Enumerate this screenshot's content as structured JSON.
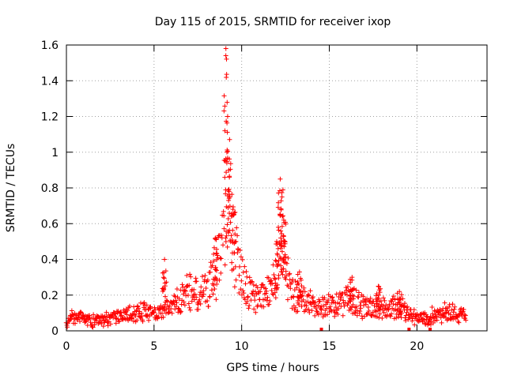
{
  "chart_data": {
    "type": "scatter",
    "title": "Day 115 of 2015, SRMTID for receiver ixop",
    "xlabel": "GPS time / hours",
    "ylabel": "SRMTID / TECUs",
    "xlim": [
      0,
      24
    ],
    "ylim": [
      0,
      1.6
    ],
    "grid": true,
    "marker": "+",
    "marker_color": "#ff0000",
    "x_ticks": [
      0,
      5,
      10,
      15,
      20
    ],
    "x_tick_labels": [
      "0",
      "5",
      "10",
      "15",
      "20"
    ],
    "y_ticks": [
      0,
      0.2,
      0.4,
      0.6,
      0.8,
      1.0,
      1.2,
      1.4,
      1.6
    ],
    "y_tick_labels": [
      "0",
      "0.2",
      "0.4",
      "0.6",
      "0.8",
      "1",
      "1.2",
      "1.4",
      "1.6"
    ],
    "series": [
      {
        "name": "SRMTID",
        "profile_note": "approximate envelope of the dense scatter (hour, typical value)",
        "x": [
          0.0,
          0.5,
          1.0,
          1.5,
          2.0,
          2.5,
          3.0,
          3.5,
          4.0,
          4.5,
          5.0,
          5.5,
          6.0,
          6.5,
          7.0,
          7.5,
          8.0,
          8.5,
          9.0,
          9.2,
          9.5,
          10.0,
          10.5,
          11.0,
          11.5,
          12.0,
          12.3,
          12.6,
          13.0,
          13.5,
          14.0,
          14.5,
          15.0,
          15.5,
          16.0,
          16.5,
          17.0,
          17.5,
          18.0,
          18.5,
          19.0,
          19.5,
          20.0,
          20.5,
          21.0,
          21.5,
          22.0,
          22.5,
          22.8
        ],
        "values": [
          0.05,
          0.08,
          0.07,
          0.06,
          0.06,
          0.07,
          0.08,
          0.09,
          0.1,
          0.12,
          0.09,
          0.11,
          0.13,
          0.18,
          0.24,
          0.2,
          0.22,
          0.3,
          0.55,
          0.9,
          0.5,
          0.28,
          0.2,
          0.18,
          0.22,
          0.3,
          0.6,
          0.3,
          0.2,
          0.18,
          0.15,
          0.12,
          0.14,
          0.15,
          0.17,
          0.16,
          0.14,
          0.13,
          0.12,
          0.13,
          0.14,
          0.1,
          0.08,
          0.07,
          0.09,
          0.1,
          0.1,
          0.08,
          0.08
        ]
      }
    ],
    "peaks": [
      {
        "x": 5.6,
        "y": 0.4
      },
      {
        "x": 8.5,
        "y": 0.52
      },
      {
        "x": 9.1,
        "y": 1.58
      },
      {
        "x": 9.2,
        "y": 1.2
      },
      {
        "x": 9.3,
        "y": 0.86
      },
      {
        "x": 9.5,
        "y": 0.68
      },
      {
        "x": 12.2,
        "y": 0.85
      },
      {
        "x": 12.3,
        "y": 0.75
      },
      {
        "x": 12.4,
        "y": 0.62
      },
      {
        "x": 12.0,
        "y": 0.5
      },
      {
        "x": 13.3,
        "y": 0.33
      },
      {
        "x": 16.3,
        "y": 0.3
      },
      {
        "x": 17.8,
        "y": 0.25
      },
      {
        "x": 19.0,
        "y": 0.22
      }
    ],
    "baseline_markers_x": [
      14.55,
      19.55,
      20.75
    ]
  }
}
